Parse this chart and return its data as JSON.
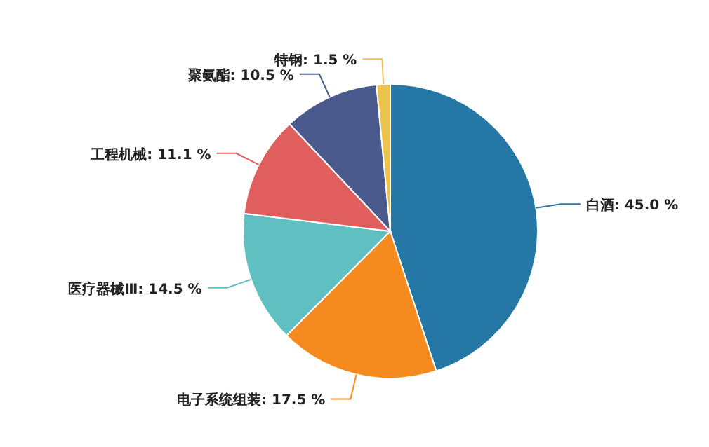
{
  "chart_data": {
    "type": "pie",
    "categories": [
      "白酒",
      "电子系统组装",
      "医疗器械Ⅲ",
      "工程机械",
      "聚氨酯",
      "特钢"
    ],
    "values": [
      45.0,
      17.5,
      14.5,
      11.1,
      10.5,
      1.5
    ],
    "colors": [
      "#2578a6",
      "#f58a1f",
      "#60bfc1",
      "#e05f5e",
      "#4b5a8d",
      "#ecc34d"
    ],
    "value_labels": [
      "45.0 %",
      "17.5 %",
      "14.5 %",
      "11.1 %",
      "10.5 %",
      "1.5 %"
    ]
  }
}
